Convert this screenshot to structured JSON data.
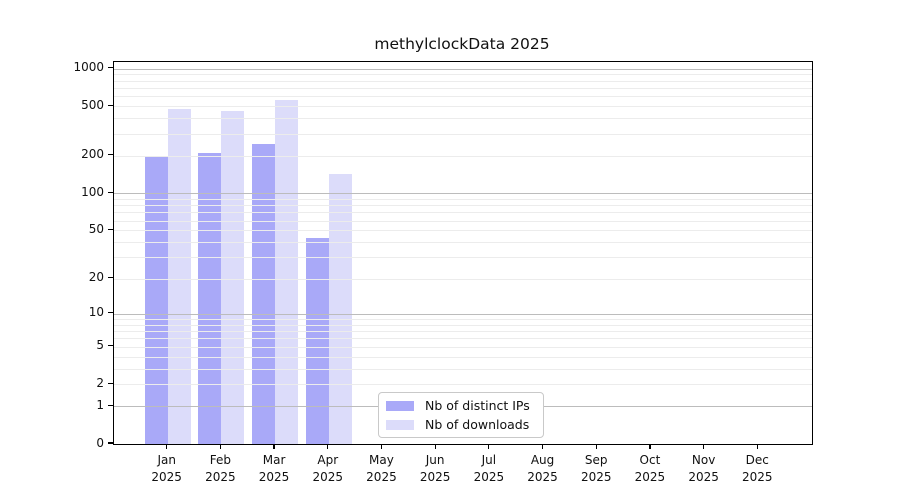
{
  "title": "methylclockData 2025",
  "chart_data": {
    "type": "bar",
    "title": "methylclockData 2025",
    "categories": [
      "Jan 2025",
      "Feb 2025",
      "Mar 2025",
      "Apr 2025",
      "May 2025",
      "Jun 2025",
      "Jul 2025",
      "Aug 2025",
      "Sep 2025",
      "Oct 2025",
      "Nov 2025",
      "Dec 2025"
    ],
    "series": [
      {
        "name": "Nb of distinct IPs",
        "color": "#a9a9f8",
        "values": [
          196,
          210,
          248,
          43,
          null,
          null,
          null,
          null,
          null,
          null,
          null,
          null
        ]
      },
      {
        "name": "Nb of downloads",
        "color": "#dcdcfa",
        "values": [
          476,
          458,
          560,
          143,
          null,
          null,
          null,
          null,
          null,
          null,
          null,
          null
        ]
      }
    ],
    "xlabel": "",
    "ylabel": "",
    "y_ticks": [
      0,
      1,
      2,
      5,
      10,
      20,
      50,
      100,
      200,
      500,
      1000
    ],
    "y_scale": "log1p",
    "ylim": [
      0,
      1110
    ],
    "grid": "horizontal, minor light gray, major gray, drawn over bars",
    "legend_position": "inside-bottom-center"
  },
  "legend": {
    "items": [
      {
        "label": "Nb of distinct IPs",
        "color": "#a9a9f8"
      },
      {
        "label": "Nb of downloads",
        "color": "#dcdcfa"
      }
    ]
  },
  "colors": {
    "bar_distinct_ips": "#a9a9f8",
    "bar_downloads": "#dcdcfa",
    "major_grid": "#bcbcbc",
    "minor_grid": "#ececec",
    "axis": "#000000",
    "text": "#111111",
    "background": "#ffffff"
  }
}
